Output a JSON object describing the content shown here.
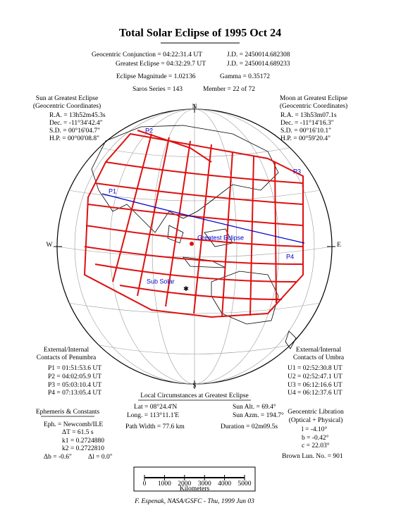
{
  "title": "Total Solar Eclipse of 1995 Oct 24",
  "header": {
    "conjunction": "Geocentric Conjunction = 04:22:31.4 UT",
    "conjunction_jd": "J.D. = 2450014.682308",
    "greatest": "Greatest Eclipse = 04:32:29.7 UT",
    "greatest_jd": "J.D. = 2450014.689233",
    "magnitude": "Eclipse Magnitude = 1.02136",
    "gamma": "Gamma = 0.35172",
    "saros": "Saros Series = 143",
    "member": "Member = 22 of 72"
  },
  "sun": {
    "heading": "Sun at Greatest Eclipse",
    "subheading": "(Geocentric Coordinates)",
    "lines": [
      "R.A. = 13h52m45.3s",
      "Dec. = -11°34'42.4\"",
      "S.D. = 00°16'04.7\"",
      "H.P. = 00°00'08.8\""
    ]
  },
  "moon": {
    "heading": "Moon at Greatest Eclipse",
    "subheading": "(Geocentric Coordinates)",
    "lines": [
      "R.A. = 13h53m07.1s",
      "Dec. = -11°14'16.3\"",
      "S.D. = 00°16'10.1\"",
      "H.P. = 00°59'20.4\""
    ]
  },
  "map": {
    "north": "N",
    "south": "S",
    "west": "W",
    "east": "E",
    "p1": "P1",
    "p2": "P2",
    "p3": "P3",
    "p4": "P4",
    "greatest": "Greatest Eclipse",
    "subsolar": "Sub Solar"
  },
  "penumbra": {
    "heading": "External/Internal",
    "subheading": "Contacts of Penumbra",
    "lines": [
      "P1 = 01:51:53.6 UT",
      "P2 = 04:02:05.9 UT",
      "P3 = 05:03:10.4 UT",
      "P4 = 07:13:05.4 UT"
    ]
  },
  "umbra": {
    "heading": "External/Internal",
    "subheading": "Contacts of Umbra",
    "lines": [
      "U1 = 02:52:30.8 UT",
      "U2 = 02:52:47.1 UT",
      "U3 = 06:12:16.6 UT",
      "U4 = 06:12:37.6 UT"
    ]
  },
  "local": {
    "heading": "Local Circumstances at Greatest Eclipse",
    "lat": "Lat = 08°24.4'N",
    "sun_alt": "Sun Alt. = 69.4°",
    "long": "Long. = 113°11.1'E",
    "sun_azm": "Sun Azm. = 194.7°",
    "path_width": "Path Width = 77.6 km",
    "duration": "Duration = 02m09.5s"
  },
  "ephemeris": {
    "heading": "Ephemeris & Constants",
    "eph": "Eph. = Newcomb/ILE",
    "delta_t": "ΔT = 61.5 s",
    "k1": "k1 = 0.2724880",
    "k2": "k2 = 0.2722810",
    "delta_b": "Δb = -0.6\"",
    "delta_l": "Δl = 0.0\""
  },
  "libration": {
    "heading": "Geocentric Libration",
    "subheading": "(Optical + Physical)",
    "l": "l = -4.10°",
    "b": "b = -0.42°",
    "c": "c = 22.03°",
    "brown": "Brown Lun. No. = 901"
  },
  "scale": {
    "ticks": [
      "0",
      "1000",
      "2000",
      "3000",
      "4000",
      "5000"
    ],
    "unit": "Kilometers"
  },
  "footer": "F. Espenak, NASA/GSFC - Thu, 1999 Jun 03"
}
